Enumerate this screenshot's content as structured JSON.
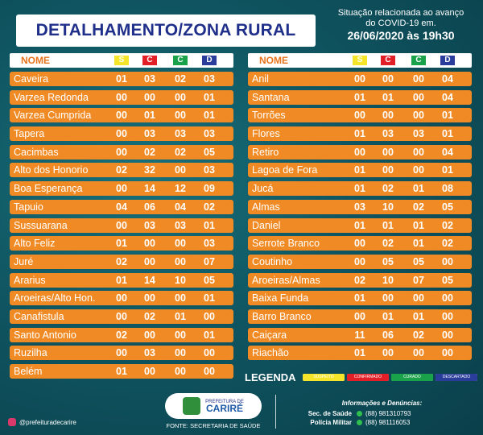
{
  "header": {
    "title": "DETALHAMENTO/ZONA RURAL",
    "info_line1": "Situação relacionada ao avanço",
    "info_line2": "do COVID-19 em.",
    "date": "26/06/2020 às 19h30"
  },
  "columns_header": {
    "name": "NOME",
    "s": "S",
    "c": "C",
    "cu": "C",
    "d": "D"
  },
  "left_rows": [
    {
      "name": "Caveira",
      "s": "01",
      "c": "03",
      "cu": "02",
      "d": "03"
    },
    {
      "name": "Varzea Redonda",
      "s": "00",
      "c": "00",
      "cu": "00",
      "d": "01"
    },
    {
      "name": "Varzea Cumprida",
      "s": "00",
      "c": "01",
      "cu": "00",
      "d": "01"
    },
    {
      "name": "Tapera",
      "s": "00",
      "c": "03",
      "cu": "03",
      "d": "03"
    },
    {
      "name": "Cacimbas",
      "s": "00",
      "c": "02",
      "cu": "02",
      "d": "05"
    },
    {
      "name": "Alto dos Honorio",
      "s": "02",
      "c": "32",
      "cu": "00",
      "d": "03"
    },
    {
      "name": "Boa Esperança",
      "s": "00",
      "c": "14",
      "cu": "12",
      "d": "09"
    },
    {
      "name": "Tapuio",
      "s": "04",
      "c": "06",
      "cu": "04",
      "d": "02"
    },
    {
      "name": "Sussuarana",
      "s": "00",
      "c": "03",
      "cu": "03",
      "d": "01"
    },
    {
      "name": "Alto Feliz",
      "s": "01",
      "c": "00",
      "cu": "00",
      "d": "03"
    },
    {
      "name": "Juré",
      "s": "02",
      "c": "00",
      "cu": "00",
      "d": "07"
    },
    {
      "name": "Ararius",
      "s": "01",
      "c": "14",
      "cu": "10",
      "d": "05"
    },
    {
      "name": "Aroeiras/Alto Hon.",
      "s": "00",
      "c": "00",
      "cu": "00",
      "d": "01"
    },
    {
      "name": "Canafistula",
      "s": "00",
      "c": "02",
      "cu": "01",
      "d": "00"
    },
    {
      "name": "Santo Antonio",
      "s": "02",
      "c": "00",
      "cu": "00",
      "d": "01"
    },
    {
      "name": "Ruzilha",
      "s": "00",
      "c": "03",
      "cu": "00",
      "d": "00"
    },
    {
      "name": "Belém",
      "s": "01",
      "c": "00",
      "cu": "00",
      "d": "00"
    }
  ],
  "right_rows": [
    {
      "name": "Anil",
      "s": "00",
      "c": "00",
      "cu": "00",
      "d": "04"
    },
    {
      "name": "Santana",
      "s": "01",
      "c": "01",
      "cu": "00",
      "d": "04"
    },
    {
      "name": "Torrões",
      "s": "00",
      "c": "00",
      "cu": "00",
      "d": "01"
    },
    {
      "name": "Flores",
      "s": "01",
      "c": "03",
      "cu": "03",
      "d": "01"
    },
    {
      "name": "Retiro",
      "s": "00",
      "c": "00",
      "cu": "00",
      "d": "04"
    },
    {
      "name": "Lagoa de Fora",
      "s": "01",
      "c": "00",
      "cu": "00",
      "d": "01"
    },
    {
      "name": "Jucá",
      "s": "01",
      "c": "02",
      "cu": "01",
      "d": "08"
    },
    {
      "name": "Almas",
      "s": "03",
      "c": "10",
      "cu": "02",
      "d": "05"
    },
    {
      "name": "Daniel",
      "s": "01",
      "c": "01",
      "cu": "01",
      "d": "02"
    },
    {
      "name": "Serrote Branco",
      "s": "00",
      "c": "02",
      "cu": "01",
      "d": "02"
    },
    {
      "name": "Coutinho",
      "s": "00",
      "c": "05",
      "cu": "05",
      "d": "00"
    },
    {
      "name": "Aroeiras/Almas",
      "s": "02",
      "c": "10",
      "cu": "07",
      "d": "05"
    },
    {
      "name": "Baixa Funda",
      "s": "01",
      "c": "00",
      "cu": "00",
      "d": "00"
    },
    {
      "name": "Barro Branco",
      "s": "00",
      "c": "01",
      "cu": "01",
      "d": "00"
    },
    {
      "name": "Caiçara",
      "s": "11",
      "c": "06",
      "cu": "02",
      "d": "00"
    },
    {
      "name": "Riachão",
      "s": "01",
      "c": "00",
      "cu": "00",
      "d": "00"
    }
  ],
  "legend": {
    "title": "LEGENDA",
    "items": [
      {
        "label": "SUSPEITO",
        "color": "#f5e52a"
      },
      {
        "label": "CONFIRMADO",
        "color": "#e21f26"
      },
      {
        "label": "CURADO",
        "color": "#19a24a"
      },
      {
        "label": "DESCARTADO",
        "color": "#2a3d9a"
      }
    ]
  },
  "footer": {
    "social": "@prefeituradecarire",
    "logo_top": "PREFEITURA DE",
    "logo_name": "CARIRÉ",
    "source": "FONTE: SECRETARIA DE SAÚDE",
    "contacts_title": "Informações e Denúncias:",
    "contact1_label": "Sec. de Saúde",
    "contact1_value": "(88) 981310793",
    "contact2_label": "Polícia Militar",
    "contact2_value": "(88) 981116053"
  },
  "colors": {
    "row_bg": "#f08a24",
    "background": "#0e4f5c",
    "title_text": "#1f2f8a"
  }
}
